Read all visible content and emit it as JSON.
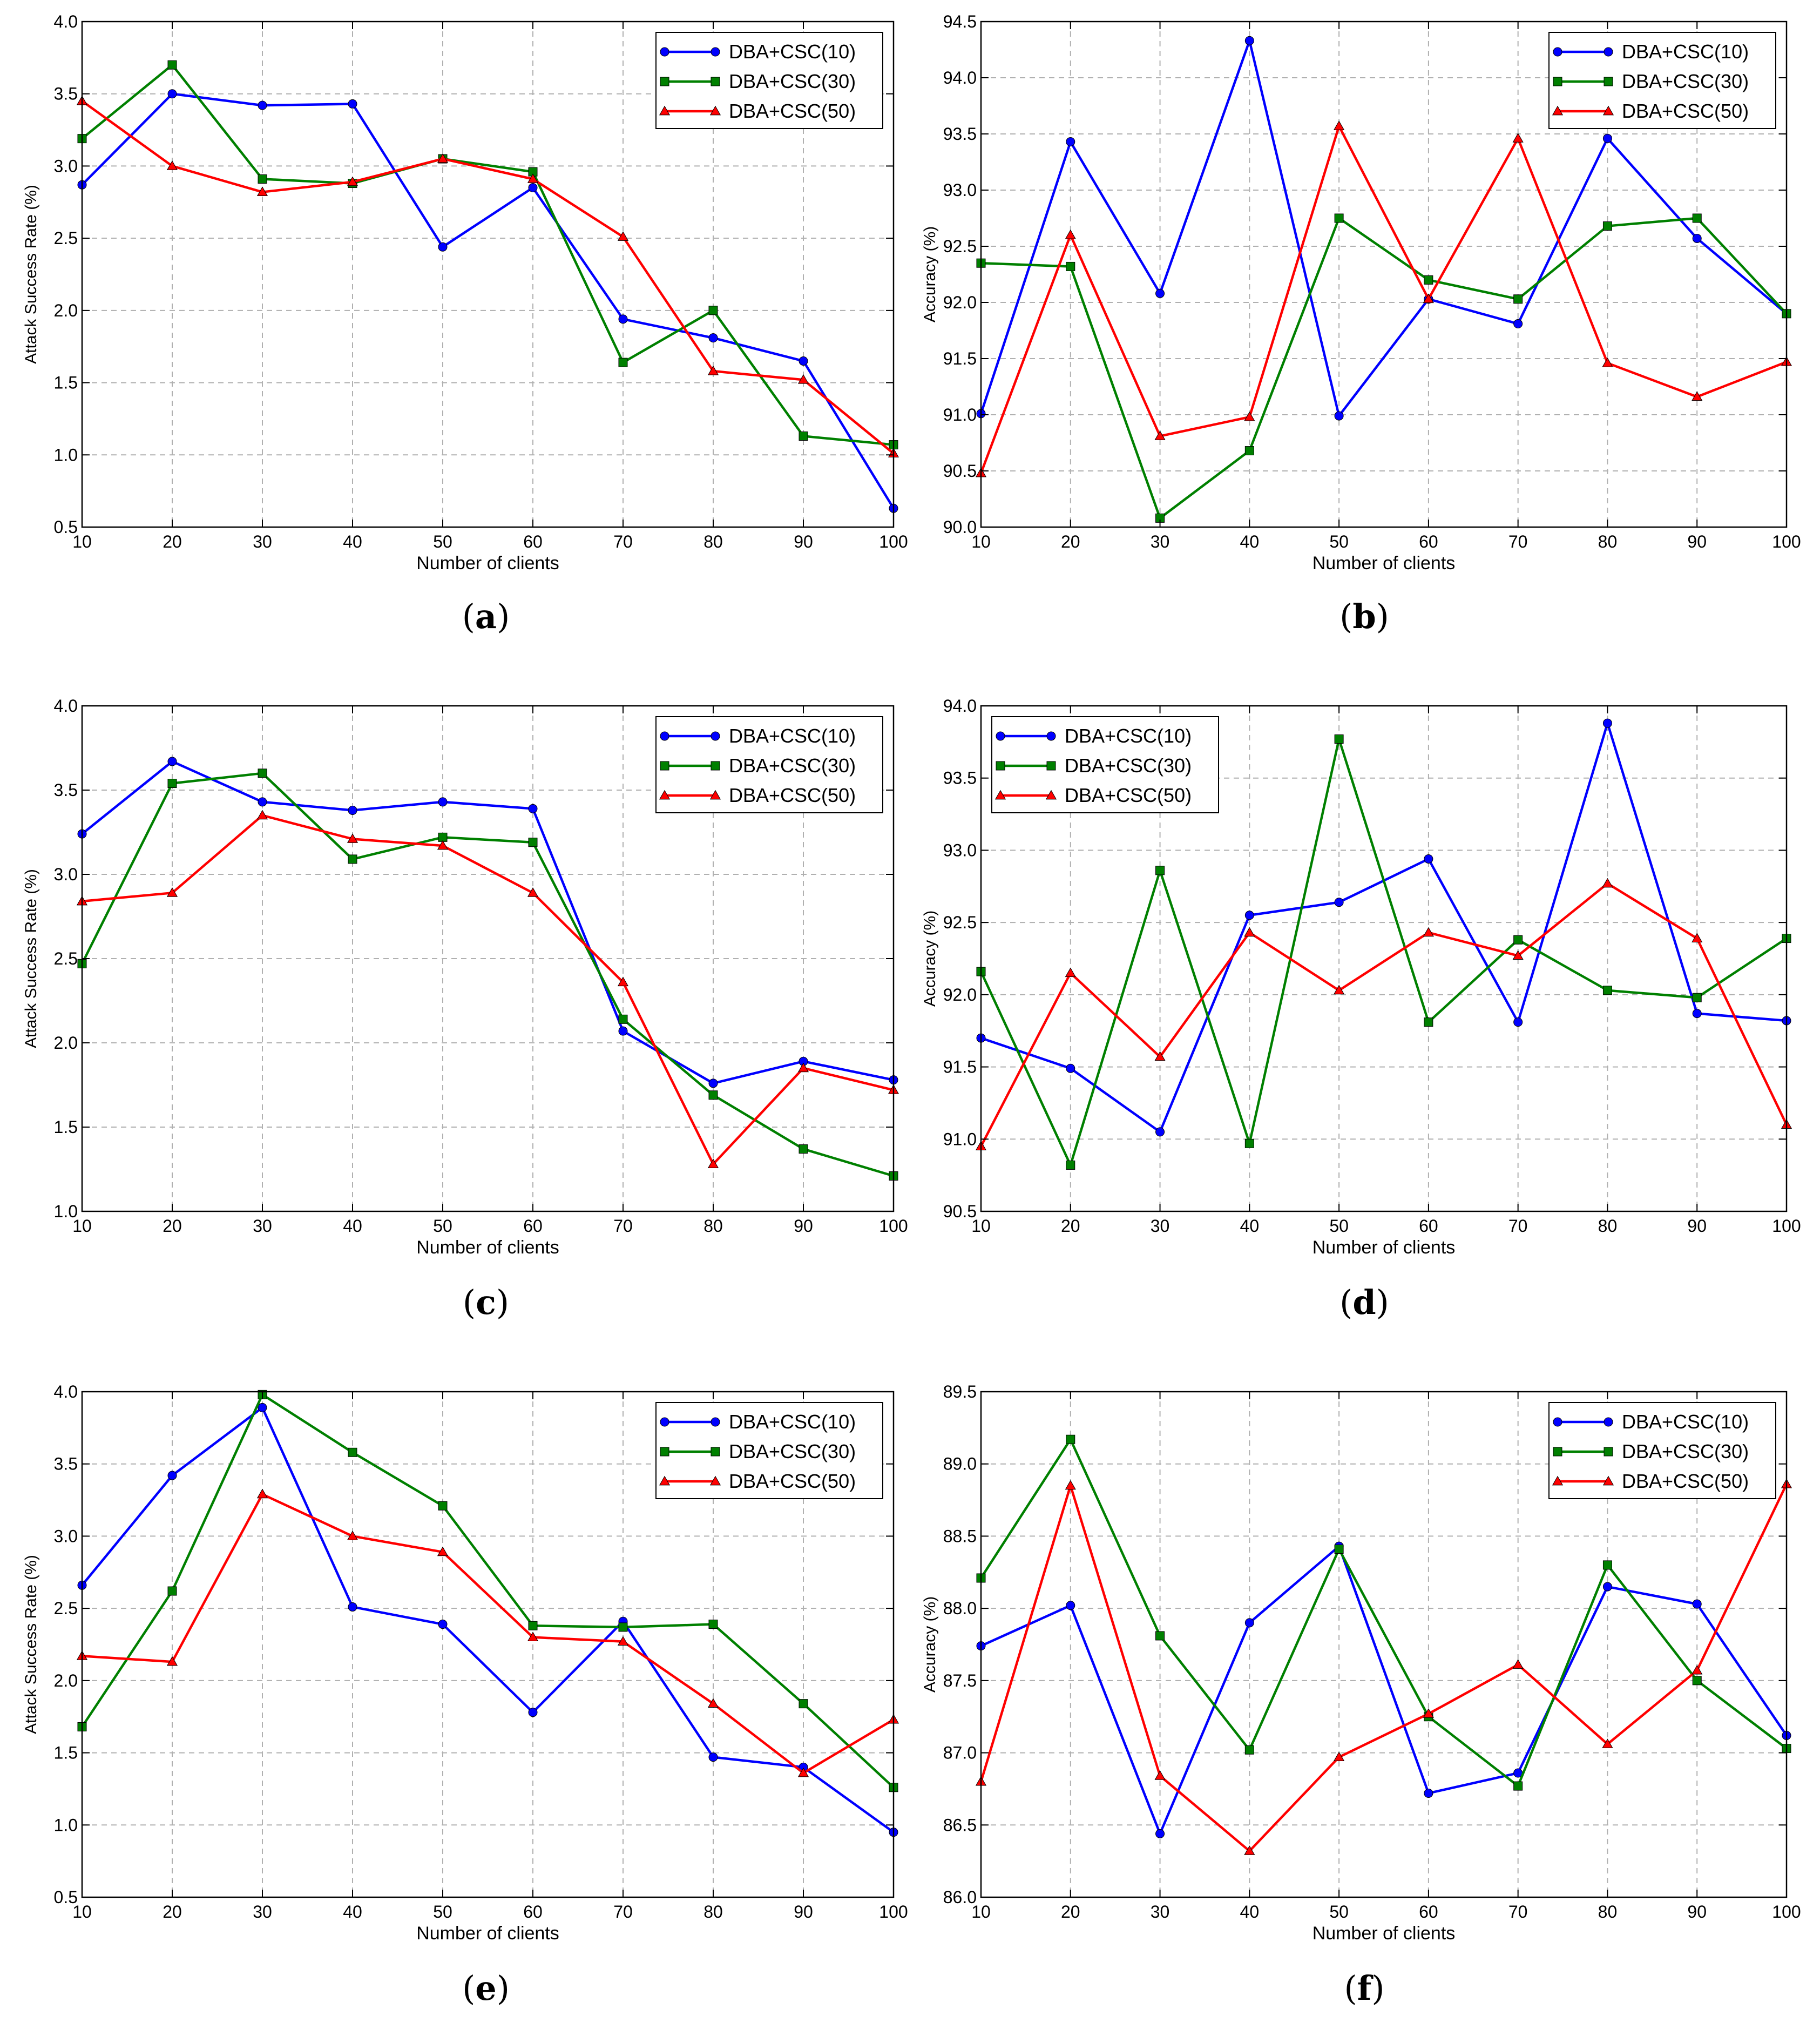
{
  "colors": {
    "s10": "#0000ff",
    "s30": "#008000",
    "s50": "#ff0000",
    "grid": "#b0b0b0"
  },
  "chart_data": [
    {
      "id": "a",
      "caption": "a",
      "type": "line",
      "xlabel": "Number of clients",
      "ylabel": "Attack Success Rate (%)",
      "x": [
        10,
        20,
        30,
        40,
        50,
        60,
        70,
        80,
        90,
        100
      ],
      "xlim": [
        10,
        100
      ],
      "ylim": [
        0.5,
        4.0
      ],
      "xticks": [
        "10",
        "20",
        "30",
        "40",
        "50",
        "60",
        "70",
        "80",
        "90",
        "100"
      ],
      "yticks": [
        "0.5",
        "1.0",
        "1.5",
        "2.0",
        "2.5",
        "3.0",
        "3.5",
        "4.0"
      ],
      "legend": "top-right",
      "grid": true,
      "series": [
        {
          "name": "DBA+CSC(10)",
          "marker": "circle",
          "color": "s10",
          "values": [
            2.87,
            3.5,
            3.42,
            3.43,
            2.44,
            2.85,
            1.94,
            1.81,
            1.65,
            0.63
          ]
        },
        {
          "name": "DBA+CSC(30)",
          "marker": "square",
          "color": "s30",
          "values": [
            3.19,
            3.7,
            2.91,
            2.88,
            3.05,
            2.96,
            1.64,
            2.0,
            1.13,
            1.07
          ]
        },
        {
          "name": "DBA+CSC(50)",
          "marker": "triangle",
          "color": "s50",
          "values": [
            3.45,
            3.0,
            2.82,
            2.89,
            3.05,
            2.91,
            2.51,
            1.58,
            1.52,
            1.01
          ]
        }
      ]
    },
    {
      "id": "b",
      "caption": "b",
      "type": "line",
      "xlabel": "Number of clients",
      "ylabel": "Accuracy (%)",
      "x": [
        10,
        20,
        30,
        40,
        50,
        60,
        70,
        80,
        90,
        100
      ],
      "xlim": [
        10,
        100
      ],
      "ylim": [
        90.0,
        94.5
      ],
      "xticks": [
        "10",
        "20",
        "30",
        "40",
        "50",
        "60",
        "70",
        "80",
        "90",
        "100"
      ],
      "yticks": [
        "90.0",
        "90.5",
        "91.0",
        "91.5",
        "92.0",
        "92.5",
        "93.0",
        "93.5",
        "94.0",
        "94.5"
      ],
      "legend": "top-right",
      "grid": true,
      "series": [
        {
          "name": "DBA+CSC(10)",
          "marker": "circle",
          "color": "s10",
          "values": [
            91.01,
            93.43,
            92.08,
            94.33,
            90.99,
            92.03,
            91.81,
            93.46,
            92.57,
            91.9
          ]
        },
        {
          "name": "DBA+CSC(30)",
          "marker": "square",
          "color": "s30",
          "values": [
            92.35,
            92.32,
            90.08,
            90.68,
            92.75,
            92.2,
            92.03,
            92.68,
            92.75,
            91.9
          ]
        },
        {
          "name": "DBA+CSC(50)",
          "marker": "triangle",
          "color": "s50",
          "values": [
            90.48,
            92.6,
            90.81,
            90.98,
            93.57,
            92.03,
            93.46,
            91.46,
            91.16,
            91.47
          ]
        }
      ]
    },
    {
      "id": "c",
      "caption": "c",
      "type": "line",
      "xlabel": "Number of clients",
      "ylabel": "Attack Success Rate (%)",
      "x": [
        10,
        20,
        30,
        40,
        50,
        60,
        70,
        80,
        90,
        100
      ],
      "xlim": [
        10,
        100
      ],
      "ylim": [
        1.0,
        4.0
      ],
      "xticks": [
        "10",
        "20",
        "30",
        "40",
        "50",
        "60",
        "70",
        "80",
        "90",
        "100"
      ],
      "yticks": [
        "1.0",
        "1.5",
        "2.0",
        "2.5",
        "3.0",
        "3.5",
        "4.0"
      ],
      "legend": "top-right",
      "grid": true,
      "series": [
        {
          "name": "DBA+CSC(10)",
          "marker": "circle",
          "color": "s10",
          "values": [
            3.24,
            3.67,
            3.43,
            3.38,
            3.43,
            3.39,
            2.07,
            1.76,
            1.89,
            1.78
          ]
        },
        {
          "name": "DBA+CSC(30)",
          "marker": "square",
          "color": "s30",
          "values": [
            2.47,
            3.54,
            3.6,
            3.09,
            3.22,
            3.19,
            2.14,
            1.69,
            1.37,
            1.21
          ]
        },
        {
          "name": "DBA+CSC(50)",
          "marker": "triangle",
          "color": "s50",
          "values": [
            2.84,
            2.89,
            3.35,
            3.21,
            3.17,
            2.89,
            2.36,
            1.28,
            1.85,
            1.72
          ]
        }
      ]
    },
    {
      "id": "d",
      "caption": "d",
      "type": "line",
      "xlabel": "Number of clients",
      "ylabel": "Accuracy (%)",
      "x": [
        10,
        20,
        30,
        40,
        50,
        60,
        70,
        80,
        90,
        100
      ],
      "xlim": [
        10,
        100
      ],
      "ylim": [
        90.5,
        94.0
      ],
      "xticks": [
        "10",
        "20",
        "30",
        "40",
        "50",
        "60",
        "70",
        "80",
        "90",
        "100"
      ],
      "yticks": [
        "90.5",
        "91.0",
        "91.5",
        "92.0",
        "92.5",
        "93.0",
        "93.5",
        "94.0"
      ],
      "legend": "top-left",
      "grid": true,
      "series": [
        {
          "name": "DBA+CSC(10)",
          "marker": "circle",
          "color": "s10",
          "values": [
            91.7,
            91.49,
            91.05,
            92.55,
            92.64,
            92.94,
            91.81,
            93.88,
            91.87,
            91.82
          ]
        },
        {
          "name": "DBA+CSC(30)",
          "marker": "square",
          "color": "s30",
          "values": [
            92.16,
            90.82,
            92.86,
            90.97,
            93.77,
            91.81,
            92.38,
            92.03,
            91.98,
            92.39
          ]
        },
        {
          "name": "DBA+CSC(50)",
          "marker": "triangle",
          "color": "s50",
          "values": [
            90.95,
            92.15,
            91.57,
            92.43,
            92.03,
            92.43,
            92.27,
            92.77,
            92.39,
            91.1
          ]
        }
      ]
    },
    {
      "id": "e",
      "caption": "e",
      "type": "line",
      "xlabel": "Number of clients",
      "ylabel": "Attack Success Rate (%)",
      "x": [
        10,
        20,
        30,
        40,
        50,
        60,
        70,
        80,
        90,
        100
      ],
      "xlim": [
        10,
        100
      ],
      "ylim": [
        0.5,
        4.0
      ],
      "xticks": [
        "10",
        "20",
        "30",
        "40",
        "50",
        "60",
        "70",
        "80",
        "90",
        "100"
      ],
      "yticks": [
        "0.5",
        "1.0",
        "1.5",
        "2.0",
        "2.5",
        "3.0",
        "3.5",
        "4.0"
      ],
      "legend": "top-right",
      "grid": true,
      "series": [
        {
          "name": "DBA+CSC(10)",
          "marker": "circle",
          "color": "s10",
          "values": [
            2.66,
            3.42,
            3.89,
            2.51,
            2.39,
            1.78,
            2.41,
            1.47,
            1.4,
            0.95
          ]
        },
        {
          "name": "DBA+CSC(30)",
          "marker": "square",
          "color": "s30",
          "values": [
            1.68,
            2.62,
            3.98,
            3.58,
            3.21,
            2.38,
            2.37,
            2.39,
            1.84,
            1.26
          ]
        },
        {
          "name": "DBA+CSC(50)",
          "marker": "triangle",
          "color": "s50",
          "values": [
            2.17,
            2.13,
            3.29,
            3.0,
            2.89,
            2.3,
            2.27,
            1.84,
            1.36,
            1.73
          ]
        }
      ]
    },
    {
      "id": "f",
      "caption": "f",
      "type": "line",
      "xlabel": "Number of clients",
      "ylabel": "Accuracy (%)",
      "x": [
        10,
        20,
        30,
        40,
        50,
        60,
        70,
        80,
        90,
        100
      ],
      "xlim": [
        10,
        100
      ],
      "ylim": [
        86.0,
        89.5
      ],
      "xticks": [
        "10",
        "20",
        "30",
        "40",
        "50",
        "60",
        "70",
        "80",
        "90",
        "100"
      ],
      "yticks": [
        "86.0",
        "86.5",
        "87.0",
        "87.5",
        "88.0",
        "88.5",
        "89.0",
        "89.5"
      ],
      "legend": "top-right",
      "grid": true,
      "series": [
        {
          "name": "DBA+CSC(10)",
          "marker": "circle",
          "color": "s10",
          "values": [
            87.74,
            88.02,
            86.44,
            87.9,
            88.43,
            86.72,
            86.86,
            88.15,
            88.03,
            87.12
          ]
        },
        {
          "name": "DBA+CSC(30)",
          "marker": "square",
          "color": "s30",
          "values": [
            88.21,
            89.17,
            87.81,
            87.02,
            88.41,
            87.25,
            86.77,
            88.3,
            87.5,
            87.03
          ]
        },
        {
          "name": "DBA+CSC(50)",
          "marker": "triangle",
          "color": "s50",
          "values": [
            86.8,
            88.85,
            86.84,
            86.32,
            86.97,
            87.27,
            87.61,
            87.06,
            87.57,
            88.86
          ]
        }
      ]
    }
  ]
}
